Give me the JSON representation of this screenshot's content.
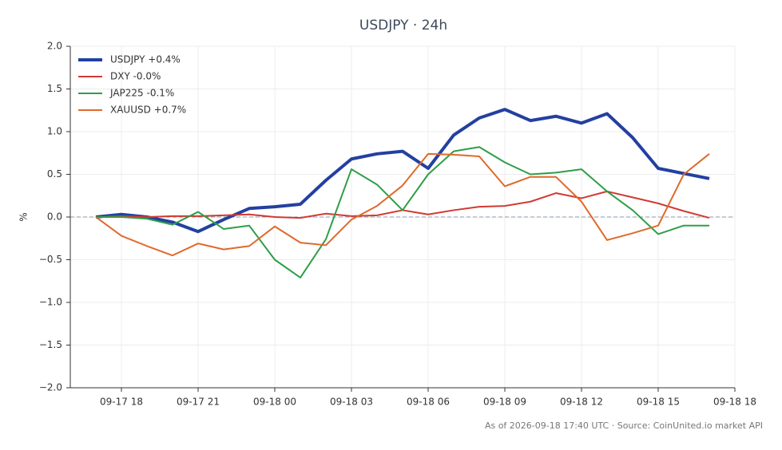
{
  "chart_data": {
    "type": "line",
    "title": "USDJPY · 24h",
    "y_label": "%",
    "footer": "As of 2026-09-18 17:40 UTC · Source: CoinUnited.io market API",
    "x": [
      "09-17 17",
      "09-17 18",
      "09-17 19",
      "09-17 20",
      "09-17 21",
      "09-17 22",
      "09-17 23",
      "09-18 00",
      "09-18 01",
      "09-18 02",
      "09-18 03",
      "09-18 04",
      "09-18 05",
      "09-18 06",
      "09-18 07",
      "09-18 08",
      "09-18 09",
      "09-18 10",
      "09-18 11",
      "09-18 12",
      "09-18 13",
      "09-18 14",
      "09-18 15",
      "09-18 16",
      "09-18 17"
    ],
    "series": [
      {
        "name": "USDJPY +0.4%",
        "color": "#2340a0",
        "width": 4,
        "values": [
          0.0,
          0.03,
          0.0,
          -0.06,
          -0.17,
          -0.03,
          0.1,
          0.12,
          0.15,
          0.43,
          0.68,
          0.74,
          0.77,
          0.57,
          0.96,
          1.16,
          1.26,
          1.13,
          1.18,
          1.1,
          1.21,
          0.93,
          0.57,
          0.51,
          0.45
        ]
      },
      {
        "name": "DXY -0.0%",
        "color": "#d13a32",
        "width": 2,
        "values": [
          0.0,
          0.01,
          0.0,
          0.01,
          0.01,
          0.02,
          0.03,
          0.0,
          -0.01,
          0.04,
          0.01,
          0.02,
          0.08,
          0.03,
          0.08,
          0.12,
          0.13,
          0.18,
          0.28,
          0.22,
          0.3,
          0.23,
          0.16,
          0.07,
          -0.01
        ]
      },
      {
        "name": "JAP225 -0.1%",
        "color": "#2e9e48",
        "width": 2,
        "values": [
          0.0,
          0.0,
          -0.02,
          -0.09,
          0.06,
          -0.14,
          -0.1,
          -0.5,
          -0.71,
          -0.26,
          0.56,
          0.38,
          0.08,
          0.5,
          0.77,
          0.82,
          0.64,
          0.5,
          0.52,
          0.56,
          0.3,
          0.08,
          -0.2,
          -0.1,
          -0.1
        ]
      },
      {
        "name": "XAUUSD +0.7%",
        "color": "#e0692a",
        "width": 2,
        "values": [
          0.0,
          -0.22,
          -0.34,
          -0.45,
          -0.31,
          -0.38,
          -0.34,
          -0.11,
          -0.3,
          -0.33,
          -0.03,
          0.13,
          0.37,
          0.74,
          0.73,
          0.71,
          0.36,
          0.47,
          0.47,
          0.18,
          -0.27,
          -0.19,
          -0.1,
          0.5,
          0.74
        ]
      }
    ],
    "xlim": [
      "09-17 16",
      "09-18 18"
    ],
    "xticks": [
      "09-17 18",
      "09-17 21",
      "09-18 00",
      "09-18 03",
      "09-18 06",
      "09-18 09",
      "09-18 12",
      "09-18 15",
      "09-18 18"
    ],
    "ylim": [
      -2,
      2
    ],
    "yticks": [
      {
        "value": -2,
        "label": "−2.0"
      },
      {
        "value": -1.5,
        "label": "−1.5"
      },
      {
        "value": -1,
        "label": "−1.0"
      },
      {
        "value": -0.5,
        "label": "−0.5"
      },
      {
        "value": 0,
        "label": "0.0"
      },
      {
        "value": 0.5,
        "label": "0.5"
      },
      {
        "value": 1,
        "label": "1.0"
      },
      {
        "value": 1.5,
        "label": "1.5"
      },
      {
        "value": 2,
        "label": "2.0"
      }
    ],
    "grid": true,
    "zero_line": true,
    "legend": "upper left"
  }
}
